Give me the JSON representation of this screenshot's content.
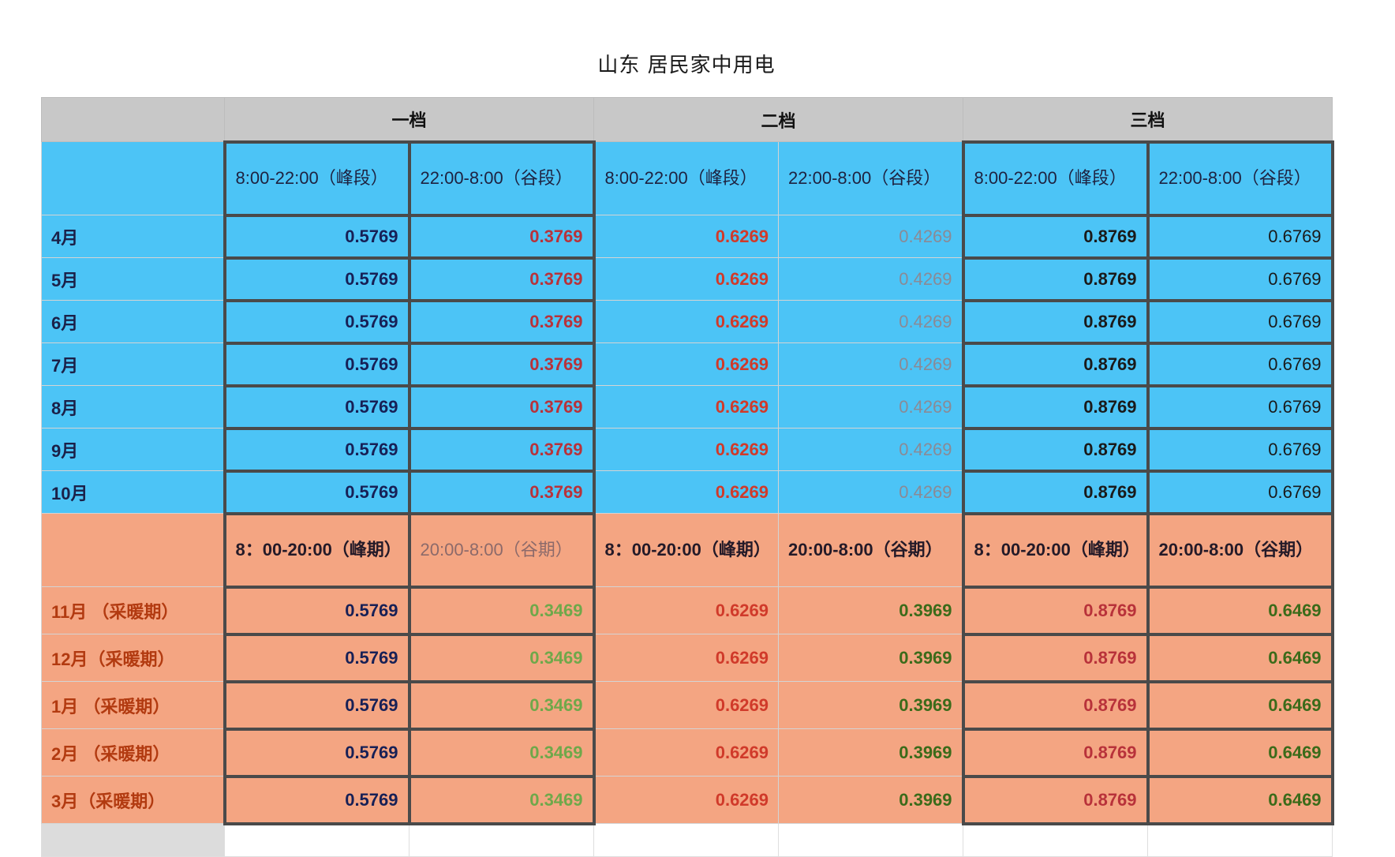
{
  "title": "山东 居民家中用电",
  "tiers": [
    "一档",
    "二档",
    "三档"
  ],
  "summer": {
    "headers": [
      "8:00-22:00（峰段）",
      "22:00-8:00（谷段）",
      "8:00-22:00（峰段）",
      "22:00-8:00（谷段）",
      "8:00-22:00（峰段）",
      "22:00-8:00（谷段）"
    ],
    "rows": [
      {
        "label": "4月",
        "values": [
          "0.5769",
          "0.3769",
          "0.6269",
          "0.4269",
          "0.8769",
          "0.6769"
        ]
      },
      {
        "label": "5月",
        "values": [
          "0.5769",
          "0.3769",
          "0.6269",
          "0.4269",
          "0.8769",
          "0.6769"
        ]
      },
      {
        "label": "6月",
        "values": [
          "0.5769",
          "0.3769",
          "0.6269",
          "0.4269",
          "0.8769",
          "0.6769"
        ]
      },
      {
        "label": "7月",
        "values": [
          "0.5769",
          "0.3769",
          "0.6269",
          "0.4269",
          "0.8769",
          "0.6769"
        ]
      },
      {
        "label": "8月",
        "values": [
          "0.5769",
          "0.3769",
          "0.6269",
          "0.4269",
          "0.8769",
          "0.6769"
        ]
      },
      {
        "label": "9月",
        "values": [
          "0.5769",
          "0.3769",
          "0.6269",
          "0.4269",
          "0.8769",
          "0.6769"
        ]
      },
      {
        "label": "10月",
        "values": [
          "0.5769",
          "0.3769",
          "0.6269",
          "0.4269",
          "0.8769",
          "0.6769"
        ]
      }
    ]
  },
  "winter": {
    "headers": [
      "8：00-20:00（峰期）",
      "20:00-8:00（谷期）",
      "8：00-20:00（峰期）",
      "20:00-8:00（谷期）",
      "8：00-20:00（峰期）",
      "20:00-8:00（谷期）"
    ],
    "rows": [
      {
        "label": "11月 （采暖期）",
        "values": [
          "0.5769",
          "0.3469",
          "0.6269",
          "0.3969",
          "0.8769",
          "0.6469"
        ]
      },
      {
        "label": "12月（采暖期）",
        "values": [
          "0.5769",
          "0.3469",
          "0.6269",
          "0.3969",
          "0.8769",
          "0.6469"
        ]
      },
      {
        "label": "1月 （采暖期）",
        "values": [
          "0.5769",
          "0.3469",
          "0.6269",
          "0.3969",
          "0.8769",
          "0.6469"
        ]
      },
      {
        "label": "2月 （采暖期）",
        "values": [
          "0.5769",
          "0.3469",
          "0.6269",
          "0.3969",
          "0.8769",
          "0.6469"
        ]
      },
      {
        "label": "3月（采暖期）",
        "values": [
          "0.5769",
          "0.3469",
          "0.6269",
          "0.3969",
          "0.8769",
          "0.6469"
        ]
      }
    ]
  },
  "colors": {
    "summer_bg": "#4cc4f6",
    "winter_bg": "#f4a582",
    "header_bg": "#c8c8c8"
  }
}
